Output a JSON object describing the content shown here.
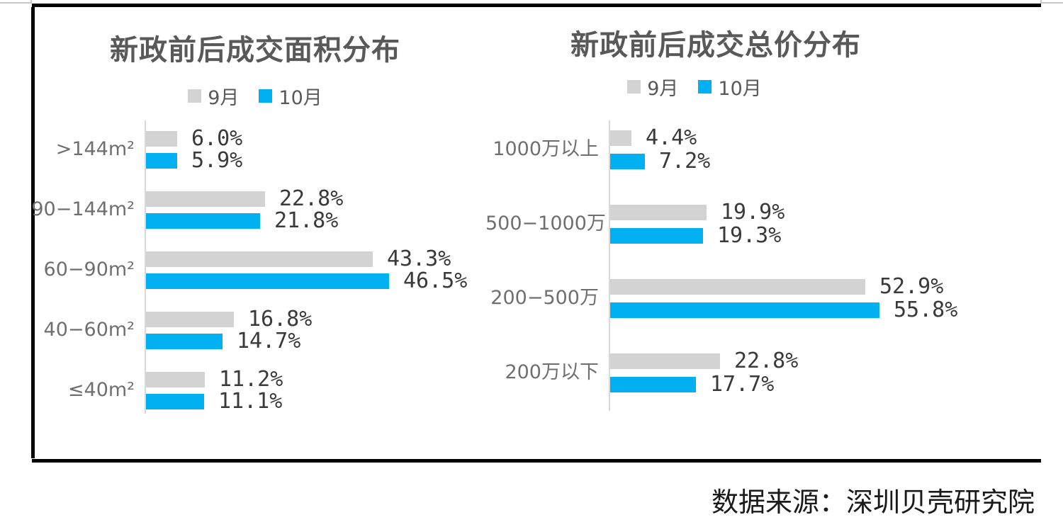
{
  "page": {
    "source_note": "数据来源：深圳贝壳研究院"
  },
  "colors": {
    "series_sep": "#d3d3d3",
    "series_oct": "#00b0f0",
    "title_text": "#595959",
    "category_text": "#6f6f6f",
    "value_text": "#3a3a3a",
    "axis_line": "#d9d9d9",
    "border": "#000000"
  },
  "chart_data": [
    {
      "type": "bar",
      "orientation": "horizontal",
      "title": "新政前后成交面积分布",
      "legend_position": "top",
      "grid": false,
      "value_suffix": "%",
      "xlim": [
        0,
        50
      ],
      "categories": [
        ">144m²",
        "90−144m²",
        "60−90m²",
        "40−60m²",
        "≤40m²"
      ],
      "series": [
        {
          "name": "9月",
          "color": "#d3d3d3",
          "values": [
            6.0,
            22.8,
            43.3,
            16.8,
            11.2
          ]
        },
        {
          "name": "10月",
          "color": "#00b0f0",
          "values": [
            5.9,
            21.8,
            46.5,
            14.7,
            11.1
          ]
        }
      ]
    },
    {
      "type": "bar",
      "orientation": "horizontal",
      "title": "新政前后成交总价分布",
      "legend_position": "top",
      "grid": false,
      "value_suffix": "%",
      "xlim": [
        0,
        60
      ],
      "categories": [
        "1000万以上",
        "500−1000万",
        "200−500万",
        "200万以下"
      ],
      "series": [
        {
          "name": "9月",
          "color": "#d3d3d3",
          "values": [
            4.4,
            19.9,
            52.9,
            22.8
          ]
        },
        {
          "name": "10月",
          "color": "#00b0f0",
          "values": [
            7.2,
            19.3,
            55.8,
            17.7
          ]
        }
      ]
    }
  ]
}
